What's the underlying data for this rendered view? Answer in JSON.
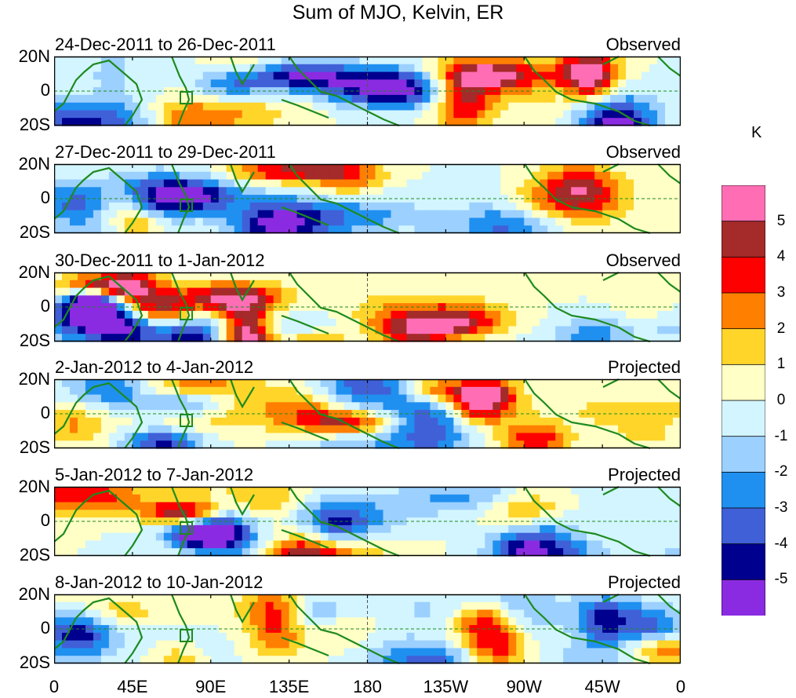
{
  "chart_data": {
    "type": "heatmap",
    "title": "Sum of MJO, Kelvin, ER",
    "unit": "K",
    "x_ticks": [
      "0",
      "45E",
      "90E",
      "135E",
      "180",
      "135W",
      "90W",
      "45W",
      "0"
    ],
    "y_ticks": [
      "20N",
      "0",
      "20S"
    ],
    "colorbar": {
      "levels": [
        "5",
        "4",
        "3",
        "2",
        "1",
        "0",
        "-1",
        "-2",
        "-3",
        "-4",
        "-5"
      ],
      "colors": [
        "#ff6eb4",
        "#a52a2a",
        "#ff0000",
        "#ff7f00",
        "#ffd52a",
        "#ffffc6",
        "#d2f5ff",
        "#9cd0ff",
        "#2090f0",
        "#4060d8",
        "#00008f",
        "#8a2be2"
      ]
    },
    "panels": [
      {
        "period": "24-Dec-2011 to 26-Dec-2011",
        "status": "Observed"
      },
      {
        "period": "27-Dec-2011 to 29-Dec-2011",
        "status": "Observed"
      },
      {
        "period": "30-Dec-2011 to 1-Jan-2012",
        "status": "Observed"
      },
      {
        "period": "2-Jan-2012 to 4-Jan-2012",
        "status": "Projected"
      },
      {
        "period": "5-Jan-2012 to 7-Jan-2012",
        "status": "Projected"
      },
      {
        "period": "8-Jan-2012 to 10-Jan-2012",
        "status": "Projected"
      }
    ]
  }
}
